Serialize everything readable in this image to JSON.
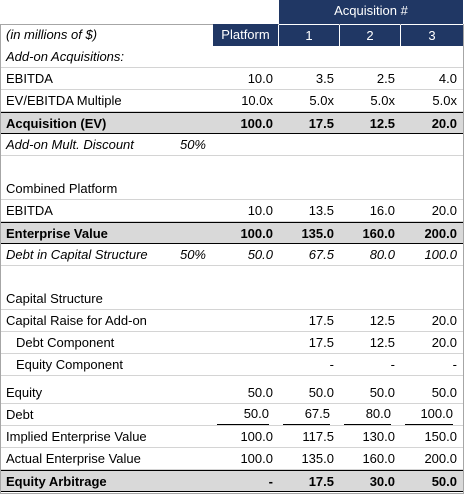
{
  "header": {
    "caption": "(in millions of $)",
    "group": "Acquisition #",
    "columns": [
      "Platform",
      "1",
      "2",
      "3"
    ]
  },
  "sections": [
    {
      "rows": [
        {
          "label": "Add-on Acquisitions:"
        },
        {
          "label": "EBITDA",
          "values": [
            "10.0",
            "3.5",
            "2.5",
            "4.0"
          ]
        },
        {
          "label": "EV/EBITDA Multiple",
          "values": [
            "10.0x",
            "5.0x",
            "5.0x",
            "5.0x"
          ]
        },
        {
          "label": "Acquisition (EV)",
          "values": [
            "100.0",
            "17.5",
            "12.5",
            "20.0"
          ]
        },
        {
          "label": "Add-on Mult. Discount",
          "pct": "50%"
        }
      ]
    },
    {
      "rows": [
        {
          "label": "Combined Platform"
        },
        {
          "label": "EBITDA",
          "values": [
            "10.0",
            "13.5",
            "16.0",
            "20.0"
          ]
        },
        {
          "label": "Enterprise Value",
          "values": [
            "100.0",
            "135.0",
            "160.0",
            "200.0"
          ]
        },
        {
          "label": "Debt in Capital Structure",
          "pct": "50%",
          "values": [
            "50.0",
            "67.5",
            "80.0",
            "100.0"
          ]
        }
      ]
    },
    {
      "rows": [
        {
          "label": "Capital Structure"
        },
        {
          "label": "Capital Raise for Add-on",
          "values": [
            null,
            "17.5",
            "12.5",
            "20.0"
          ]
        },
        {
          "label": "Debt Component",
          "values": [
            null,
            "17.5",
            "12.5",
            "20.0"
          ]
        },
        {
          "label": "Equity Component",
          "values": [
            null,
            "-",
            "-",
            "-"
          ]
        }
      ]
    },
    {
      "rows": [
        {
          "label": "Equity",
          "values": [
            "50.0",
            "50.0",
            "50.0",
            "50.0"
          ]
        },
        {
          "label": "Debt",
          "values": [
            "50.0",
            "67.5",
            "80.0",
            "100.0"
          ]
        },
        {
          "label": "Implied Enterprise Value",
          "values": [
            "100.0",
            "117.5",
            "130.0",
            "150.0"
          ]
        },
        {
          "label": "Actual Enterprise Value",
          "values": [
            "100.0",
            "135.0",
            "160.0",
            "200.0"
          ]
        },
        {
          "label": "Equity Arbitrage",
          "values": [
            "-",
            "17.5",
            "30.0",
            "50.0"
          ]
        }
      ]
    }
  ]
}
